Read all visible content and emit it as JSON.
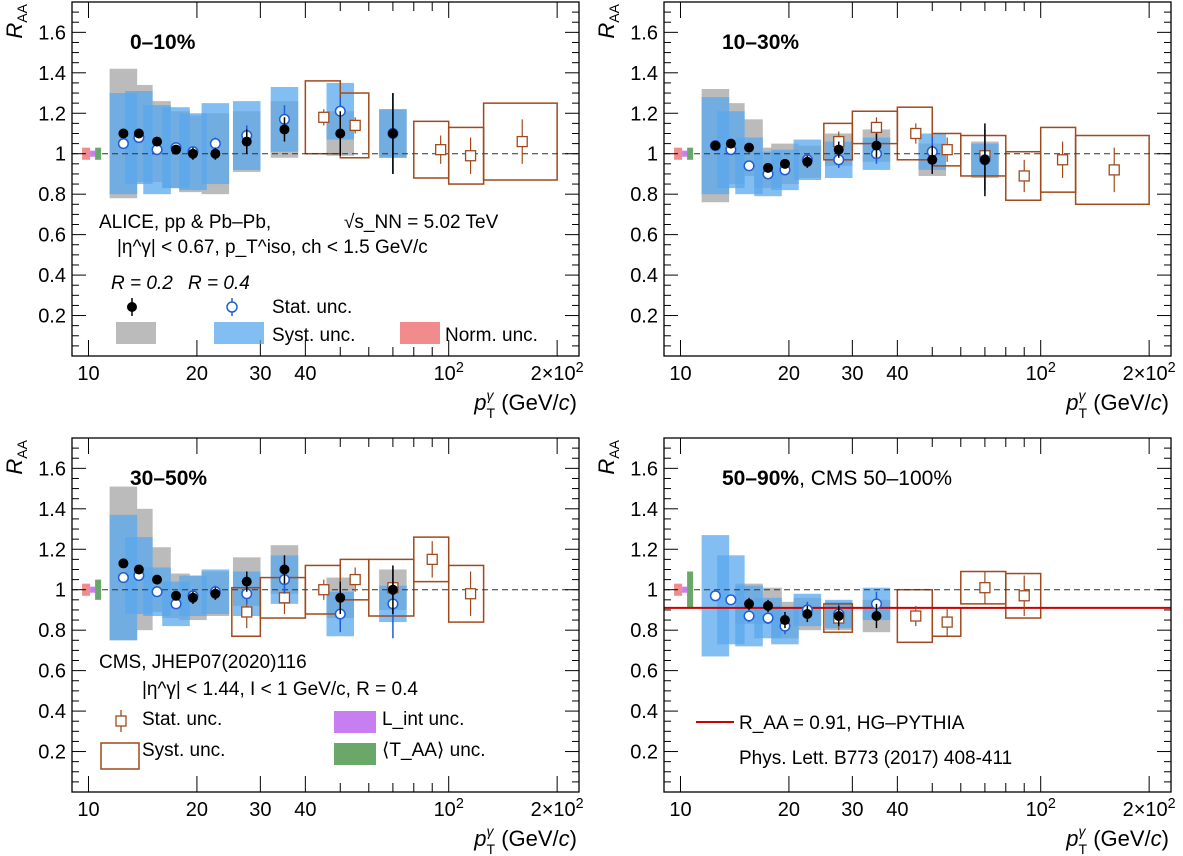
{
  "x_label": "p_T^γ (GeV/c)",
  "y_label": "R_AA",
  "colors": {
    "alice_r02_stat": "#000000",
    "alice_r02_syst": "#bbbbbb",
    "alice_r04_stat": "#1f5fd6",
    "alice_r04_syst": "#5aa8ee",
    "alice_norm": "#f28b8b",
    "cms": "#a04a1c",
    "cms_lint": "#c77ef0",
    "cms_taa": "#6aa86a",
    "model_line": "#cc0000"
  },
  "legends": {
    "alice_header": "ALICE, pp & Pb–Pb,",
    "alice_energy": "√s_NN = 5.02 TeV",
    "alice_cuts": "|η^γ| < 0.67, p_T^iso, ch < 1.5 GeV/c",
    "r02": "R = 0.2",
    "r04": "R = 0.4",
    "stat": "Stat. unc.",
    "syst": "Syst. unc.",
    "norm": "Norm. unc.",
    "cms_header": "CMS, JHEP07(2020)116",
    "cms_cuts": "|η^γ| < 1.44, I < 1 GeV/c, R = 0.4",
    "cms_stat": "Stat. unc.",
    "cms_syst": "Syst. unc.",
    "cms_lint": "L_int unc.",
    "cms_taa": "⟨T_AA⟩ unc.",
    "model": "R_AA = 0.91, HG–PYTHIA",
    "model_ref": "Phys. Lett. B773 (2017) 408-411"
  },
  "chart_data": [
    {
      "type": "scatter",
      "title": "0–10%",
      "xlabel": "p_T^γ (GeV/c)",
      "ylabel": "R_AA",
      "x_scale": "log",
      "xlim": [
        9,
        230
      ],
      "ylim": [
        0,
        1.75
      ],
      "x_ticks": [
        "10",
        "20",
        "30",
        "40",
        "10^2",
        "2×10^2"
      ],
      "y_ticks": [
        "0.2",
        "0.4",
        "0.6",
        "0.8",
        "1",
        "1.2",
        "1.4",
        "1.6"
      ],
      "reference_line": 1,
      "series": [
        {
          "name": "R = 0.2",
          "x": [
            12.5,
            13.8,
            15.5,
            17.5,
            19.5,
            22.5,
            27.5,
            35,
            50,
            70
          ],
          "y": [
            1.1,
            1.1,
            1.06,
            1.02,
            1.0,
            1.0,
            1.06,
            1.12,
            1.1,
            1.1
          ],
          "stat": [
            0.02,
            0.02,
            0.02,
            0.02,
            0.03,
            0.03,
            0.06,
            0.06,
            0.11,
            0.2
          ],
          "syst": [
            0.32,
            0.24,
            0.2,
            0.19,
            0.19,
            0.2,
            0.15,
            0.14,
            0.11,
            0.12
          ]
        },
        {
          "name": "R = 0.4",
          "x": [
            12.5,
            13.8,
            15.5,
            17.5,
            19.5,
            22.5,
            27.5,
            35,
            50,
            70
          ],
          "y": [
            1.05,
            1.08,
            1.02,
            1.03,
            1.01,
            1.05,
            1.09,
            1.17,
            1.21,
            1.1
          ],
          "stat": [
            0.02,
            0.02,
            0.02,
            0.02,
            0.02,
            0.03,
            0.05,
            0.07,
            0.07,
            0.2
          ],
          "syst": [
            0.25,
            0.23,
            0.22,
            0.2,
            0.19,
            0.2,
            0.17,
            0.16,
            0.14,
            0.12
          ]
        },
        {
          "name": "CMS",
          "x": [
            45,
            55,
            95,
            115,
            160
          ],
          "y": [
            1.18,
            1.14,
            1.02,
            0.99,
            1.06
          ],
          "stat": [
            0.01,
            0.01,
            0.04,
            0.06,
            0.08
          ],
          "syst": [
            0.18,
            0.16,
            0.14,
            0.14,
            0.19
          ],
          "x_low": [
            40,
            50,
            80,
            100,
            125
          ],
          "x_high": [
            50,
            60,
            100,
            125,
            200
          ]
        }
      ]
    },
    {
      "type": "scatter",
      "title": "10–30%",
      "xlabel": "p_T^γ (GeV/c)",
      "ylabel": "R_AA",
      "x_scale": "log",
      "xlim": [
        9,
        230
      ],
      "ylim": [
        0,
        1.75
      ],
      "x_ticks": [
        "10",
        "20",
        "30",
        "40",
        "10^2",
        "2×10^2"
      ],
      "y_ticks": [
        "0.2",
        "0.4",
        "0.6",
        "0.8",
        "1",
        "1.2",
        "1.4",
        "1.6"
      ],
      "reference_line": 1,
      "series": [
        {
          "name": "R = 0.2",
          "x": [
            12.5,
            13.8,
            15.5,
            17.5,
            19.5,
            22.5,
            27.5,
            35,
            50,
            70
          ],
          "y": [
            1.04,
            1.05,
            1.03,
            0.93,
            0.95,
            0.96,
            1.02,
            1.04,
            0.97,
            0.97
          ],
          "stat": [
            0.02,
            0.02,
            0.02,
            0.02,
            0.02,
            0.03,
            0.04,
            0.06,
            0.07,
            0.18
          ],
          "syst": [
            0.28,
            0.2,
            0.14,
            0.1,
            0.1,
            0.08,
            0.08,
            0.08,
            0.08,
            0.09
          ]
        },
        {
          "name": "R = 0.4",
          "x": [
            12.5,
            13.8,
            15.5,
            17.5,
            19.5,
            22.5,
            27.5,
            35,
            50,
            70
          ],
          "y": [
            1.04,
            1.02,
            0.94,
            0.9,
            0.92,
            0.97,
            0.97,
            1.0,
            1.01,
            0.97
          ],
          "stat": [
            0.02,
            0.02,
            0.02,
            0.02,
            0.02,
            0.03,
            0.04,
            0.05,
            0.07,
            0.15
          ],
          "syst": [
            0.24,
            0.19,
            0.14,
            0.11,
            0.1,
            0.1,
            0.09,
            0.08,
            0.09,
            0.08
          ]
        },
        {
          "name": "CMS",
          "x": [
            27.5,
            35,
            45,
            55,
            70,
            90,
            115,
            160
          ],
          "y": [
            1.06,
            1.13,
            1.1,
            1.02,
            0.99,
            0.89,
            0.97,
            0.92
          ],
          "stat": [
            0.02,
            0.02,
            0.02,
            0.03,
            0.04,
            0.05,
            0.06,
            0.08
          ],
          "syst": [
            0.09,
            0.08,
            0.13,
            0.08,
            0.1,
            0.12,
            0.16,
            0.17
          ],
          "x_low": [
            25,
            30,
            40,
            50,
            60,
            80,
            100,
            125
          ],
          "x_high": [
            30,
            40,
            50,
            60,
            80,
            100,
            125,
            200
          ]
        }
      ]
    },
    {
      "type": "scatter",
      "title": "30–50%",
      "xlabel": "p_T^γ (GeV/c)",
      "ylabel": "R_AA",
      "x_scale": "log",
      "xlim": [
        9,
        230
      ],
      "ylim": [
        0,
        1.75
      ],
      "x_ticks": [
        "10",
        "20",
        "30",
        "40",
        "10^2",
        "2×10^2"
      ],
      "y_ticks": [
        "0.2",
        "0.4",
        "0.6",
        "0.8",
        "1",
        "1.2",
        "1.4",
        "1.6"
      ],
      "reference_line": 1,
      "series": [
        {
          "name": "R = 0.2",
          "x": [
            12.5,
            13.8,
            15.5,
            17.5,
            19.5,
            22.5,
            27.5,
            35,
            50,
            70
          ],
          "y": [
            1.13,
            1.1,
            1.05,
            0.97,
            0.96,
            0.98,
            1.04,
            1.1,
            0.96,
            1.0
          ],
          "stat": [
            0.02,
            0.02,
            0.02,
            0.02,
            0.03,
            0.03,
            0.05,
            0.07,
            0.08,
            0.12
          ],
          "syst": [
            0.38,
            0.3,
            0.16,
            0.11,
            0.11,
            0.11,
            0.12,
            0.12,
            0.1,
            0.1
          ]
        },
        {
          "name": "R = 0.4",
          "x": [
            12.5,
            13.8,
            15.5,
            17.5,
            19.5,
            22.5,
            27.5,
            35,
            50,
            70
          ],
          "y": [
            1.06,
            1.07,
            0.99,
            0.93,
            0.97,
            0.99,
            0.98,
            1.05,
            0.88,
            0.93
          ],
          "stat": [
            0.02,
            0.02,
            0.02,
            0.02,
            0.03,
            0.03,
            0.05,
            0.07,
            0.09,
            0.17
          ],
          "syst": [
            0.31,
            0.19,
            0.12,
            0.11,
            0.1,
            0.11,
            0.11,
            0.12,
            0.11,
            0.09
          ]
        },
        {
          "name": "CMS",
          "x": [
            27.5,
            35,
            45,
            55,
            70,
            90,
            115
          ],
          "y": [
            0.89,
            0.96,
            1.0,
            1.05,
            1.01,
            1.15,
            0.98
          ],
          "stat": [
            0.05,
            0.05,
            0.02,
            0.03,
            0.04,
            0.06,
            0.08
          ],
          "syst": [
            0.12,
            0.1,
            0.12,
            0.1,
            0.14,
            0.11,
            0.14
          ],
          "x_low": [
            25,
            30,
            40,
            50,
            60,
            80,
            100
          ],
          "x_high": [
            30,
            40,
            50,
            60,
            80,
            100,
            125
          ]
        }
      ]
    },
    {
      "type": "scatter",
      "title": "50–90%",
      "subtitle": ", CMS 50–100%",
      "xlabel": "p_T^γ (GeV/c)",
      "ylabel": "R_AA",
      "x_scale": "log",
      "xlim": [
        9,
        230
      ],
      "ylim": [
        0,
        1.75
      ],
      "x_ticks": [
        "10",
        "20",
        "30",
        "40",
        "10^2",
        "2×10^2"
      ],
      "y_ticks": [
        "0.2",
        "0.4",
        "0.6",
        "0.8",
        "1",
        "1.2",
        "1.4",
        "1.6"
      ],
      "reference_line": 1,
      "model_line": 0.91,
      "series": [
        {
          "name": "R = 0.2",
          "x": [
            15.5,
            17.5,
            19.5,
            22.5,
            27.5,
            35
          ],
          "y": [
            0.93,
            0.92,
            0.85,
            0.88,
            0.87,
            0.87
          ],
          "stat": [
            0.03,
            0.03,
            0.04,
            0.04,
            0.05,
            0.06
          ],
          "syst": [
            0.1,
            0.09,
            0.09,
            0.08,
            0.07,
            0.08
          ]
        },
        {
          "name": "R = 0.4",
          "x": [
            12.5,
            13.8,
            15.5,
            17.5,
            19.5,
            22.5,
            27.5,
            35
          ],
          "y": [
            0.97,
            0.95,
            0.87,
            0.86,
            0.82,
            0.9,
            0.88,
            0.93
          ],
          "stat": [
            0.02,
            0.02,
            0.03,
            0.03,
            0.04,
            0.04,
            0.05,
            0.06
          ],
          "syst": [
            0.3,
            0.22,
            0.15,
            0.1,
            0.09,
            0.08,
            0.07,
            0.08
          ]
        },
        {
          "name": "CMS",
          "x": [
            27.5,
            45,
            55,
            70,
            90
          ],
          "y": [
            0.86,
            0.87,
            0.84,
            1.01,
            0.97
          ],
          "stat": [
            0.03,
            0.02,
            0.04,
            0.05,
            0.07
          ],
          "syst": [
            0.07,
            0.13,
            0.07,
            0.08,
            0.11
          ],
          "x_low": [
            25,
            40,
            50,
            60,
            80
          ],
          "x_high": [
            30,
            50,
            60,
            80,
            100
          ]
        }
      ]
    }
  ]
}
